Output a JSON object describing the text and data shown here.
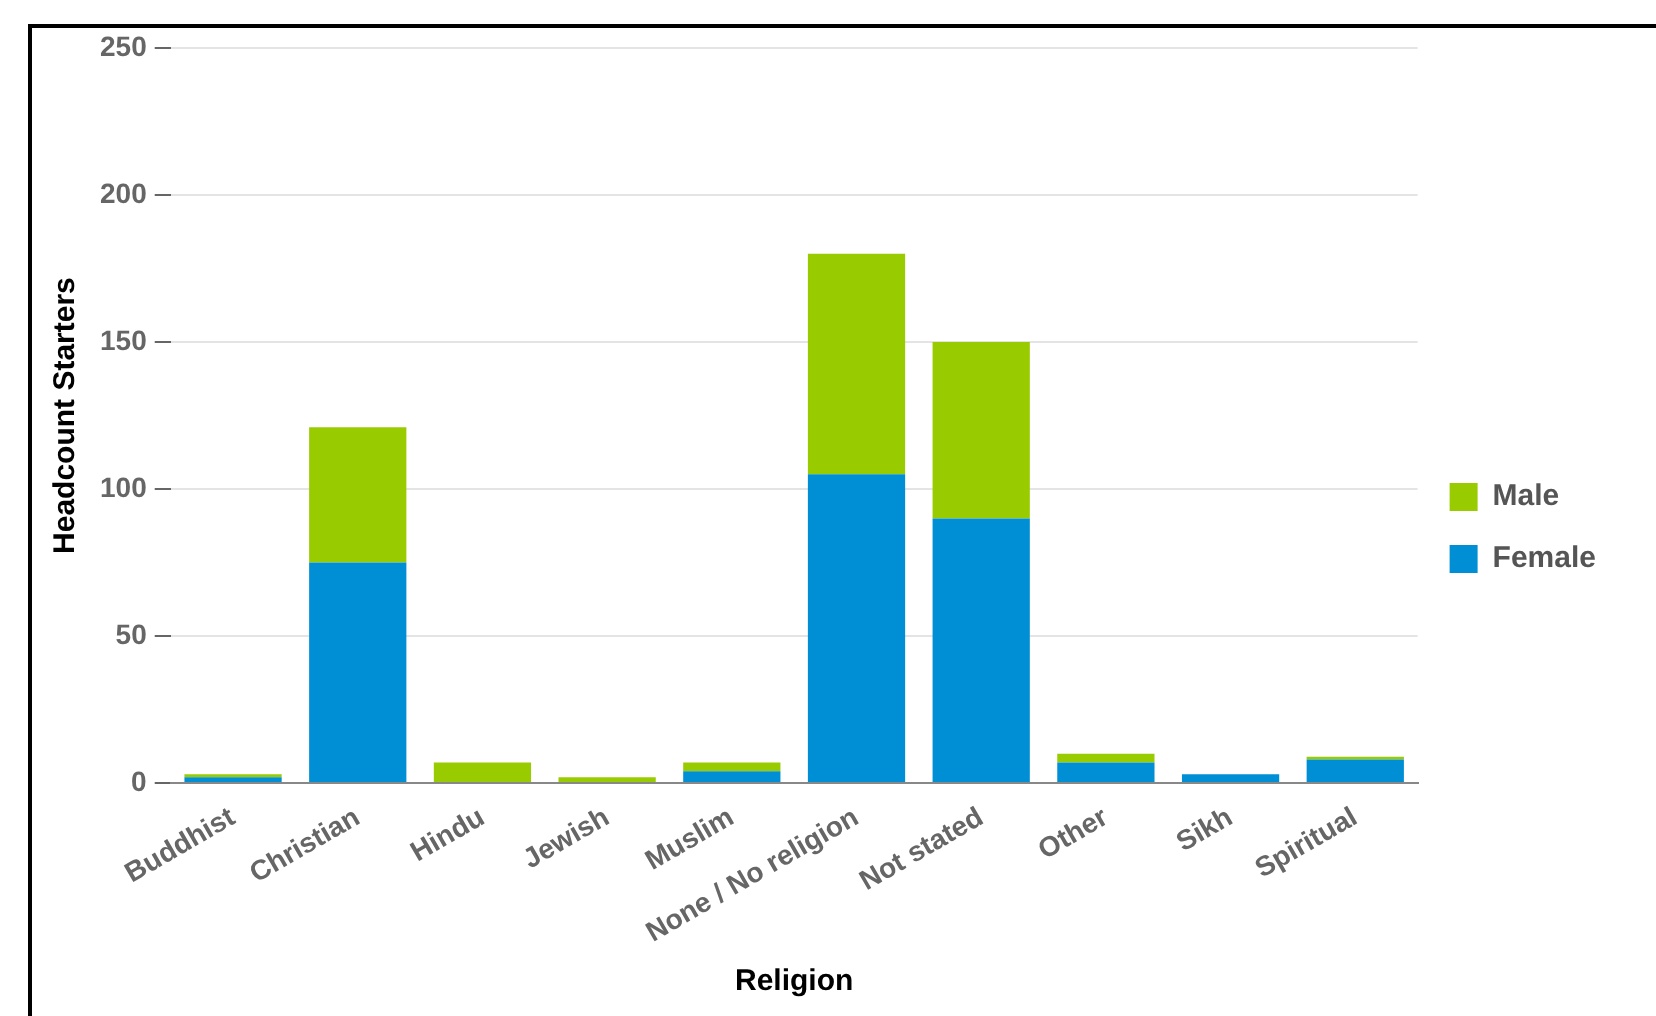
{
  "chart_data": {
    "type": "bar",
    "stacked": true,
    "xlabel": "Religion",
    "ylabel": "Headcount Starters",
    "categories": [
      "Buddhist",
      "Christian",
      "Hindu",
      "Jewish",
      "Muslim",
      "None / No religion",
      "Not stated",
      "Other",
      "Sikh",
      "Spiritual"
    ],
    "series": [
      {
        "name": "Female",
        "color": "#008fd5",
        "values": [
          2,
          75,
          0,
          0,
          4,
          105,
          90,
          7,
          3,
          8
        ]
      },
      {
        "name": "Male",
        "color": "#99cc00",
        "values": [
          1,
          46,
          7,
          2,
          3,
          75,
          60,
          3,
          0,
          1
        ]
      }
    ],
    "ylim": [
      0,
      250
    ],
    "yticks": [
      0,
      50,
      100,
      150,
      200,
      250
    ],
    "grid": "y",
    "legend": "right"
  }
}
